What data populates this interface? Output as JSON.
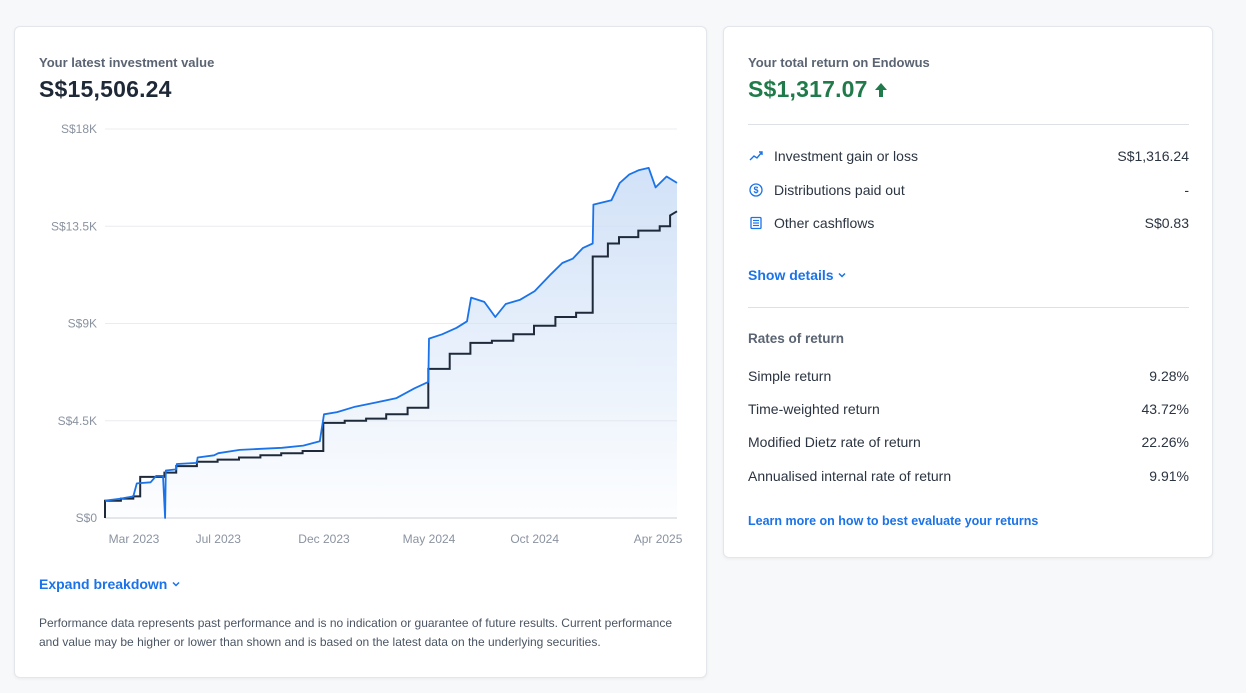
{
  "left_card": {
    "label": "Your latest investment value",
    "value": "S$15,506.24",
    "expand_label": "Expand breakdown",
    "expand_icon": "chevron-down-icon",
    "disclaimer": "Performance data represents past performance and is no indication or guarantee of future results. Current performance and value may be higher or lower than shown and is based on the latest data on the underlying securities."
  },
  "chart_data": {
    "type": "area",
    "y_tick_labels": [
      "S$0",
      "S$4.5K",
      "S$9K",
      "S$13.5K",
      "S$18K"
    ],
    "y_ticks": [
      0,
      4500,
      9000,
      13500,
      18000
    ],
    "ylim": [
      0,
      18000
    ],
    "x_tick_labels": [
      "Mar 2023",
      "Jul 2023",
      "Dec 2023",
      "May 2024",
      "Oct 2024",
      "Apr 2025"
    ],
    "x_tick_dates": [
      "2023-03-01",
      "2023-07-01",
      "2023-12-01",
      "2024-05-01",
      "2024-10-01",
      "2025-04-01"
    ],
    "grid": true,
    "colors": {
      "value": "#1a73e8",
      "net_invested": "#1e2a3a",
      "fill": "#cfe0f7"
    },
    "series": [
      {
        "role": "investment-value",
        "points": [
          [
            "2023-01-18",
            800
          ],
          [
            "2023-02-10",
            900
          ],
          [
            "2023-02-28",
            1000
          ],
          [
            "2023-03-05",
            1600
          ],
          [
            "2023-03-25",
            1650
          ],
          [
            "2023-04-02",
            1950
          ],
          [
            "2023-04-12",
            1950
          ],
          [
            "2023-04-15",
            0
          ],
          [
            "2023-04-16",
            2200
          ],
          [
            "2023-05-01",
            2250
          ],
          [
            "2023-05-02",
            2500
          ],
          [
            "2023-05-31",
            2550
          ],
          [
            "2023-06-01",
            2800
          ],
          [
            "2023-06-25",
            2900
          ],
          [
            "2023-07-01",
            3000
          ],
          [
            "2023-08-01",
            3150
          ],
          [
            "2023-09-01",
            3200
          ],
          [
            "2023-10-01",
            3250
          ],
          [
            "2023-11-01",
            3350
          ],
          [
            "2023-11-25",
            3550
          ],
          [
            "2023-12-01",
            4800
          ],
          [
            "2023-12-20",
            4900
          ],
          [
            "2024-01-15",
            5150
          ],
          [
            "2024-02-15",
            5350
          ],
          [
            "2024-03-15",
            5550
          ],
          [
            "2024-04-10",
            6000
          ],
          [
            "2024-04-30",
            6300
          ],
          [
            "2024-05-01",
            8300
          ],
          [
            "2024-05-20",
            8500
          ],
          [
            "2024-06-10",
            8800
          ],
          [
            "2024-06-25",
            9100
          ],
          [
            "2024-07-01",
            10200
          ],
          [
            "2024-07-20",
            10000
          ],
          [
            "2024-08-05",
            9300
          ],
          [
            "2024-08-20",
            9900
          ],
          [
            "2024-09-10",
            10100
          ],
          [
            "2024-10-01",
            10500
          ],
          [
            "2024-10-25",
            11300
          ],
          [
            "2024-11-10",
            11800
          ],
          [
            "2024-11-25",
            12000
          ],
          [
            "2024-12-10",
            12500
          ],
          [
            "2024-12-24",
            12700
          ],
          [
            "2024-12-25",
            14500
          ],
          [
            "2025-01-20",
            14700
          ],
          [
            "2025-02-01",
            15500
          ],
          [
            "2025-02-15",
            15900
          ],
          [
            "2025-03-01",
            16100
          ],
          [
            "2025-03-15",
            16200
          ],
          [
            "2025-03-25",
            15300
          ],
          [
            "2025-04-10",
            15800
          ],
          [
            "2025-04-25",
            15506
          ]
        ]
      },
      {
        "role": "net-invested",
        "points": [
          [
            "2023-01-18",
            0
          ],
          [
            "2023-01-18",
            800
          ],
          [
            "2023-02-10",
            800
          ],
          [
            "2023-02-10",
            900
          ],
          [
            "2023-02-28",
            900
          ],
          [
            "2023-02-28",
            1000
          ],
          [
            "2023-03-10",
            1000
          ],
          [
            "2023-03-10",
            1900
          ],
          [
            "2023-04-14",
            1900
          ],
          [
            "2023-04-14",
            2100
          ],
          [
            "2023-05-01",
            2100
          ],
          [
            "2023-05-01",
            2400
          ],
          [
            "2023-05-31",
            2400
          ],
          [
            "2023-05-31",
            2600
          ],
          [
            "2023-06-30",
            2600
          ],
          [
            "2023-06-30",
            2700
          ],
          [
            "2023-07-31",
            2700
          ],
          [
            "2023-07-31",
            2800
          ],
          [
            "2023-08-31",
            2800
          ],
          [
            "2023-08-31",
            2900
          ],
          [
            "2023-09-30",
            2900
          ],
          [
            "2023-09-30",
            3000
          ],
          [
            "2023-10-31",
            3000
          ],
          [
            "2023-10-31",
            3100
          ],
          [
            "2023-11-30",
            3100
          ],
          [
            "2023-11-30",
            4400
          ],
          [
            "2023-12-31",
            4400
          ],
          [
            "2023-12-31",
            4500
          ],
          [
            "2024-01-31",
            4500
          ],
          [
            "2024-01-31",
            4600
          ],
          [
            "2024-02-29",
            4600
          ],
          [
            "2024-02-29",
            4800
          ],
          [
            "2024-03-31",
            4800
          ],
          [
            "2024-03-31",
            5100
          ],
          [
            "2024-04-30",
            5100
          ],
          [
            "2024-04-30",
            6900
          ],
          [
            "2024-05-31",
            6900
          ],
          [
            "2024-05-31",
            7600
          ],
          [
            "2024-06-30",
            7600
          ],
          [
            "2024-06-30",
            8100
          ],
          [
            "2024-07-31",
            8100
          ],
          [
            "2024-07-31",
            8200
          ],
          [
            "2024-08-31",
            8200
          ],
          [
            "2024-08-31",
            8500
          ],
          [
            "2024-09-30",
            8500
          ],
          [
            "2024-09-30",
            8900
          ],
          [
            "2024-10-31",
            8900
          ],
          [
            "2024-10-31",
            9300
          ],
          [
            "2024-11-30",
            9300
          ],
          [
            "2024-11-30",
            9500
          ],
          [
            "2024-12-24",
            9500
          ],
          [
            "2024-12-24",
            12100
          ],
          [
            "2025-01-15",
            12100
          ],
          [
            "2025-01-15",
            12700
          ],
          [
            "2025-01-31",
            12700
          ],
          [
            "2025-01-31",
            13000
          ],
          [
            "2025-02-28",
            13000
          ],
          [
            "2025-02-28",
            13300
          ],
          [
            "2025-03-31",
            13300
          ],
          [
            "2025-03-31",
            13500
          ],
          [
            "2025-04-15",
            13500
          ],
          [
            "2025-04-15",
            14000
          ],
          [
            "2025-04-25",
            14190
          ]
        ]
      }
    ]
  },
  "right_card": {
    "label": "Your total return on Endowus",
    "value": "S$1,317.07",
    "value_icon": "arrow-up-icon",
    "breakdown": [
      {
        "icon": "trend-line-icon",
        "label": "Investment gain or loss",
        "value": "S$1,316.24"
      },
      {
        "icon": "dollar-circle-icon",
        "label": "Distributions paid out",
        "value": "-"
      },
      {
        "icon": "ledger-icon",
        "label": "Other cashflows",
        "value": "S$0.83"
      }
    ],
    "show_details_label": "Show details",
    "show_details_icon": "chevron-down-icon",
    "rates_title": "Rates of return",
    "rates": [
      {
        "label": "Simple return",
        "value": "9.28%"
      },
      {
        "label": "Time-weighted return",
        "value": "43.72%"
      },
      {
        "label": "Modified Dietz rate of return",
        "value": "22.26%"
      },
      {
        "label": "Annualised internal rate of return",
        "value": "9.91%"
      }
    ],
    "learn_more_label": "Learn more on how to best evaluate your returns"
  }
}
